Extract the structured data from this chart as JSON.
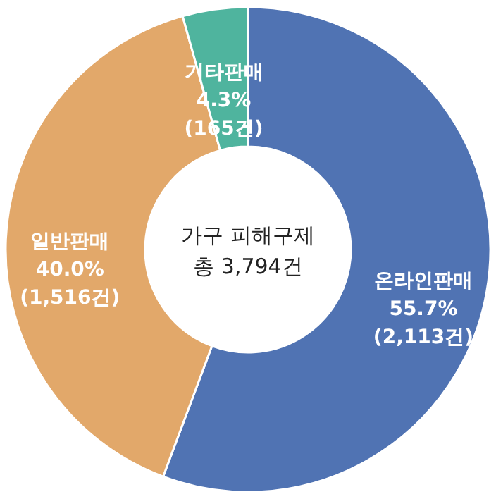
{
  "chart_data": {
    "type": "donut",
    "categories": [
      "온라인판매",
      "일반판매",
      "기타판매"
    ],
    "values": [
      2113,
      1516,
      165
    ],
    "colors": [
      "#5073b3",
      "#e2a86a",
      "#4fb49e"
    ],
    "value_labels": [
      "55.7%\n(2,113건)",
      "40.0%\n(1,516건)",
      "4.3%\n(165건)"
    ],
    "annotations": [
      "가구 피해구제\n총 3,794건"
    ]
  }
}
